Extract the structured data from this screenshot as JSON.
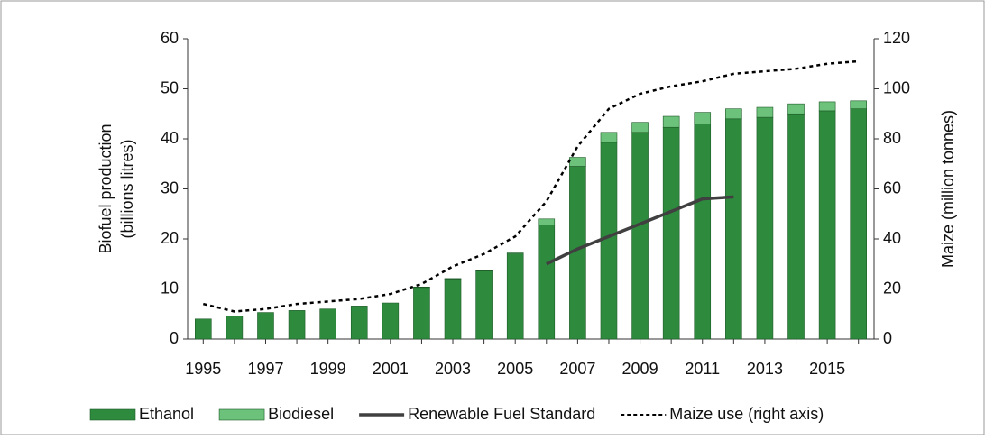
{
  "chart_data": {
    "type": "bar",
    "y_label": "Biofuel production\n(billions litres)",
    "y2_label": "Maize (million tonnes)",
    "categories": [
      "1995",
      null,
      "1997",
      null,
      "1999",
      null,
      "2001",
      null,
      "2003",
      null,
      "2005",
      null,
      "2007",
      null,
      "2009",
      null,
      "2011",
      null,
      "2013",
      null,
      "2015",
      null
    ],
    "series": [
      {
        "name": "Ethanol",
        "type": "bar",
        "stack": true,
        "color": "#2e8b3e",
        "values": [
          4,
          4.6,
          5.3,
          5.7,
          6.0,
          6.6,
          7.2,
          10.3,
          12,
          13.6,
          17,
          22.8,
          34.5,
          39.3,
          41.3,
          42.3,
          43,
          44,
          44.3,
          45,
          45.6,
          46
        ]
      },
      {
        "name": "Biodiesel",
        "type": "bar",
        "stack": true,
        "color": "#6cc27a",
        "values": [
          0,
          0,
          0,
          0,
          0,
          0,
          0,
          0.1,
          0.1,
          0.1,
          0.2,
          1.2,
          1.8,
          2,
          2,
          2.2,
          2.3,
          2,
          2,
          2,
          1.8,
          1.6
        ]
      },
      {
        "name": "Renewable Fuel Standard",
        "type": "line",
        "color": "#404040",
        "values": [
          null,
          null,
          null,
          null,
          null,
          null,
          null,
          null,
          null,
          null,
          null,
          15,
          18,
          20.5,
          23,
          25.5,
          28,
          28.4,
          null,
          null,
          null,
          null
        ]
      },
      {
        "name": "Maize use (right axis)",
        "type": "line",
        "dashed": true,
        "axis": "y2",
        "color": "#000000",
        "values": [
          14,
          11,
          12,
          14,
          15,
          16,
          18,
          22,
          29,
          34,
          41,
          55,
          77,
          92,
          98,
          101,
          103,
          106,
          107,
          108,
          110,
          111
        ]
      }
    ],
    "ylim": [
      0,
      60
    ],
    "yticks": [
      0,
      10,
      20,
      30,
      40,
      50,
      60
    ],
    "y2lim": [
      0,
      120
    ],
    "y2ticks": [
      0,
      20,
      40,
      60,
      80,
      100,
      120
    ],
    "legend": "bottom"
  }
}
